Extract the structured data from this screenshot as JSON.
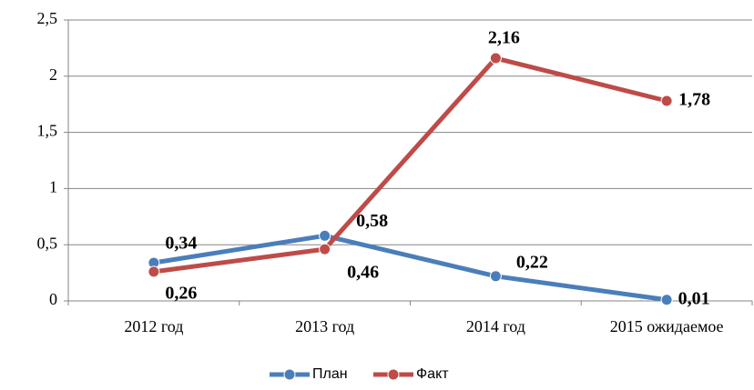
{
  "chart_data": {
    "type": "line",
    "categories": [
      "2012 год",
      "2013 год",
      "2014 год",
      "2015 ожидаемое"
    ],
    "series": [
      {
        "name": "План",
        "color": "#4a7ebb",
        "values": [
          0.34,
          0.58,
          0.22,
          0.01
        ],
        "value_labels": [
          "0,34",
          "0,58",
          "0,22",
          "0,01"
        ]
      },
      {
        "name": "Факт",
        "color": "#be4b48",
        "values": [
          0.26,
          0.46,
          2.16,
          1.78
        ],
        "value_labels": [
          "0,26",
          "0,46",
          "2,16",
          "1,78"
        ]
      }
    ],
    "ylim": [
      0,
      2.5
    ],
    "yticks": [
      0,
      {
        "value": 0.5,
        "label": "0,5"
      },
      1,
      {
        "value": 1.5,
        "label": "1,5"
      },
      2,
      {
        "value": 2.5,
        "label": "2,5"
      }
    ],
    "grid": true,
    "legend": "bottom"
  }
}
